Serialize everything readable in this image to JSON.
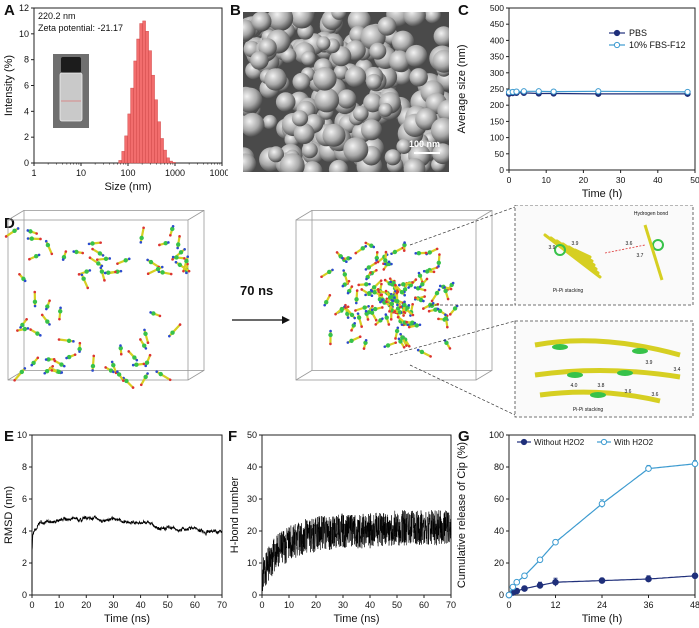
{
  "panel_labels": {
    "A": "A",
    "B": "B",
    "C": "C",
    "D": "D",
    "E": "E",
    "F": "F",
    "G": "G"
  },
  "panel_a": {
    "annotation_size": "220.2 nm",
    "annotation_zeta": "Zeta potential: -21.17",
    "colors": {
      "bars": "#f26d6d",
      "bar_edge": "#c44"
    }
  },
  "panel_b": {
    "scale_bar": "100 nm"
  },
  "panel_d": {
    "arrow_label": "70 ns",
    "zoom_top_labels": [
      "Hydrogen bond",
      "Pi-Pi stacking"
    ],
    "zoom_bottom_label": "Pi-Pi stacking",
    "zoom_top_numbers": [
      "3.9",
      "3.9",
      "3.6",
      "3.7"
    ],
    "zoom_bottom_numbers": [
      "3.9",
      "3.4",
      "4.0",
      "3.8",
      "3.6",
      "3.6"
    ]
  },
  "chart_data": [
    {
      "id": "A",
      "type": "bar",
      "xlabel": "Size (nm)",
      "ylabel": "Intensity (%)",
      "xscale": "log",
      "xlim": [
        1,
        10000
      ],
      "ylim": [
        0,
        12
      ],
      "xticks": [
        "1",
        "10",
        "100",
        "1000",
        "10000"
      ],
      "yticks": [
        "0",
        "2",
        "4",
        "6",
        "8",
        "10",
        "12"
      ],
      "x": [
        68,
        79,
        91,
        106,
        122,
        142,
        164,
        190,
        220,
        255,
        295,
        342,
        396,
        459,
        531,
        615,
        712,
        825,
        955
      ],
      "values": [
        0.2,
        0.9,
        2.1,
        3.8,
        5.8,
        7.9,
        9.6,
        10.8,
        11.0,
        10.2,
        8.7,
        6.8,
        4.9,
        3.2,
        1.9,
        1.0,
        0.4,
        0.15,
        0.05
      ]
    },
    {
      "id": "C",
      "type": "line",
      "xlabel": "Time (h)",
      "ylabel": "Average size (nm)",
      "xlim": [
        0,
        50
      ],
      "ylim": [
        0,
        500
      ],
      "xticks": [
        "0",
        "10",
        "20",
        "30",
        "40",
        "50"
      ],
      "yticks": [
        "0",
        "50",
        "100",
        "150",
        "200",
        "250",
        "300",
        "350",
        "400",
        "450",
        "500"
      ],
      "legend": "top-right",
      "series": [
        {
          "name": "PBS",
          "x": [
            0,
            1,
            2,
            4,
            8,
            12,
            24,
            48
          ],
          "values": [
            235,
            237,
            238,
            238,
            236,
            236,
            235,
            235
          ],
          "style": "filled",
          "color": "#1f2f7a"
        },
        {
          "name": "10% FBS-F12",
          "x": [
            0,
            1,
            2,
            4,
            8,
            12,
            24,
            48
          ],
          "values": [
            240,
            241,
            242,
            243,
            243,
            242,
            243,
            241
          ],
          "style": "open",
          "color": "#3d9bd0"
        }
      ]
    },
    {
      "id": "E",
      "type": "line",
      "xlabel": "Time (ns)",
      "ylabel": "RMSD (nm)",
      "xlim": [
        0,
        70
      ],
      "ylim": [
        0,
        10
      ],
      "xticks": [
        "0",
        "10",
        "20",
        "30",
        "40",
        "50",
        "60",
        "70"
      ],
      "yticks": [
        "0",
        "2",
        "4",
        "6",
        "8",
        "10"
      ],
      "curve": {
        "x": [
          0,
          0.3,
          1,
          3,
          6,
          10,
          15,
          20,
          25,
          30,
          35,
          40,
          45,
          50,
          55,
          60,
          65,
          70
        ],
        "values": [
          2.8,
          3.8,
          4.2,
          4.4,
          4.5,
          4.6,
          4.8,
          4.7,
          4.7,
          4.6,
          4.6,
          4.5,
          4.4,
          4.3,
          4.2,
          4.1,
          4.0,
          4.0
        ]
      }
    },
    {
      "id": "F",
      "type": "line",
      "xlabel": "Time (ns)",
      "ylabel": "H-bond number",
      "xlim": [
        0,
        70
      ],
      "ylim": [
        0,
        50
      ],
      "xticks": [
        "0",
        "10",
        "20",
        "30",
        "40",
        "50",
        "60",
        "70"
      ],
      "yticks": [
        "0",
        "10",
        "20",
        "30",
        "40",
        "50"
      ],
      "curve": {
        "x": [
          0,
          2,
          5,
          10,
          15,
          20,
          30,
          40,
          50,
          60,
          70
        ],
        "values": [
          6,
          9,
          13,
          16,
          18,
          19,
          20,
          20,
          21,
          21,
          21
        ]
      }
    },
    {
      "id": "G",
      "type": "line",
      "xlabel": "Time (h)",
      "ylabel": "Cumulative release of Cip (%)",
      "xlim": [
        0,
        48
      ],
      "ylim": [
        0,
        100
      ],
      "xticks": [
        "0",
        "12",
        "24",
        "36",
        "48"
      ],
      "yticks": [
        "0",
        "20",
        "40",
        "60",
        "80",
        "100"
      ],
      "legend": "top",
      "series": [
        {
          "name": "Without H2O2",
          "x": [
            0,
            1,
            2,
            4,
            8,
            12,
            24,
            36,
            48
          ],
          "values": [
            0,
            1.5,
            2.5,
            4,
            6,
            8,
            9,
            10,
            12
          ],
          "errors": [
            0.5,
            0.8,
            1,
            1.5,
            2,
            2.5,
            1.5,
            2,
            1.5
          ],
          "style": "filled",
          "color": "#1f2f7a"
        },
        {
          "name": "With H2O2",
          "x": [
            0,
            1,
            2,
            4,
            8,
            12,
            24,
            36,
            48
          ],
          "values": [
            0,
            5,
            8,
            12,
            22,
            33,
            57,
            79,
            82
          ],
          "errors": [
            0.5,
            1,
            1.2,
            1.5,
            1.5,
            1.5,
            2.5,
            2,
            2
          ],
          "style": "open",
          "color": "#3d9bd0"
        }
      ]
    }
  ]
}
